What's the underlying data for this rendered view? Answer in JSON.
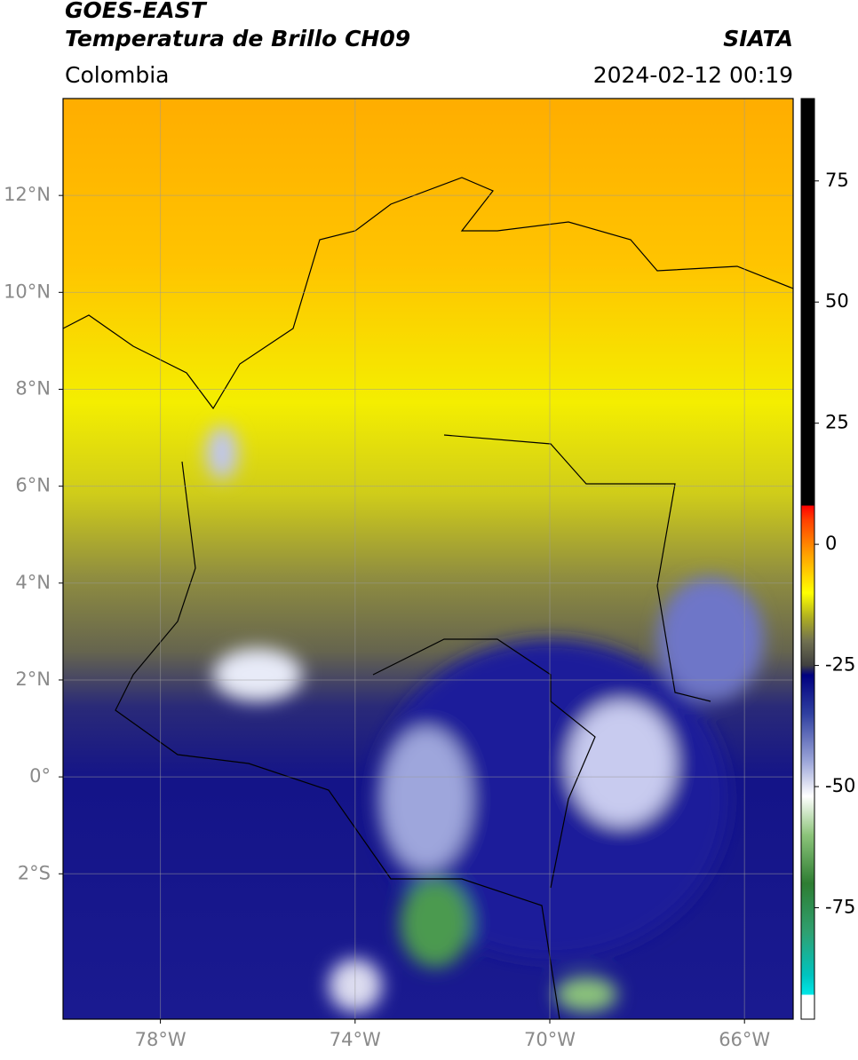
{
  "header": {
    "title": "GOES-EAST",
    "subtitle": "Temperatura de Brillo CH09",
    "source": "SIATA",
    "region": "Colombia",
    "datetime": "2024-02-12 00:19"
  },
  "map": {
    "lonlim": [
      -80,
      -65
    ],
    "latlim": [
      -5,
      14
    ],
    "lon_ticks": [
      {
        "value": -78,
        "label": "78°W"
      },
      {
        "value": -74,
        "label": "74°W"
      },
      {
        "value": -70,
        "label": "70°W"
      },
      {
        "value": -66,
        "label": "66°W"
      }
    ],
    "lat_ticks": [
      {
        "value": 12,
        "label": "12°N"
      },
      {
        "value": 10,
        "label": "10°N"
      },
      {
        "value": 8,
        "label": "8°N"
      },
      {
        "value": 6,
        "label": "6°N"
      },
      {
        "value": 4,
        "label": "4°N"
      },
      {
        "value": 2,
        "label": "2°N"
      },
      {
        "value": 0,
        "label": "0°"
      },
      {
        "value": -2,
        "label": "2°S"
      }
    ],
    "grid": true
  },
  "colorbar": {
    "lim": [
      -98,
      92
    ],
    "ticks": [
      75,
      50,
      25,
      0,
      -25,
      -50,
      -75
    ],
    "colormap": [
      {
        "value": -98,
        "color": "#ffffff"
      },
      {
        "value": -93,
        "color": "#ffffff"
      },
      {
        "value": -93,
        "color": "#00e8e8"
      },
      {
        "value": -89,
        "color": "#00c4c0"
      },
      {
        "value": -80,
        "color": "#2fa070"
      },
      {
        "value": -70,
        "color": "#2e7d32"
      },
      {
        "value": -60,
        "color": "#8cc47a"
      },
      {
        "value": -52,
        "color": "#ffffff"
      },
      {
        "value": -45,
        "color": "#9fa8da"
      },
      {
        "value": -35,
        "color": "#3040a0"
      },
      {
        "value": -27,
        "color": "#000080"
      },
      {
        "value": -25,
        "color": "#404040"
      },
      {
        "value": -20,
        "color": "#707050"
      },
      {
        "value": -15,
        "color": "#b0b020"
      },
      {
        "value": -10,
        "color": "#ffff00"
      },
      {
        "value": -2,
        "color": "#ffa000"
      },
      {
        "value": 5,
        "color": "#ff4000"
      },
      {
        "value": 8,
        "color": "#ff0000"
      },
      {
        "value": 8,
        "color": "#000000"
      },
      {
        "value": 92,
        "color": "#000000"
      }
    ]
  }
}
